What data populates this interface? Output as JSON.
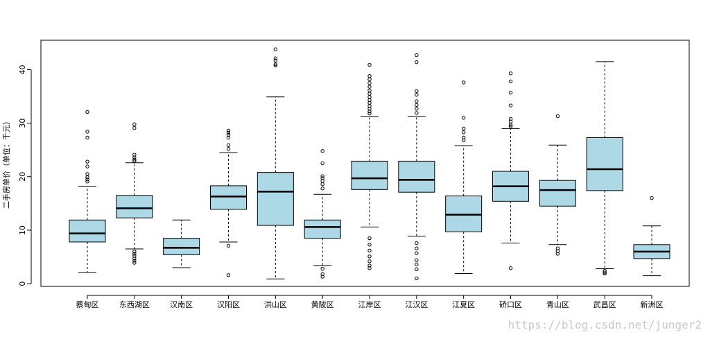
{
  "chart_data": {
    "type": "box",
    "ylabel": "二手房单价（单位：千元）",
    "ylim": [
      -0.5,
      45.5
    ],
    "yticks": [
      0,
      10,
      20,
      30,
      40
    ],
    "box_fill": "#add8e6",
    "categories": [
      "蔡甸区",
      "东西湖区",
      "汉南区",
      "汉阳区",
      "洪山区",
      "黄陂区",
      "江岸区",
      "江汉区",
      "江夏区",
      "硚口区",
      "青山区",
      "武昌区",
      "新洲区"
    ],
    "boxes": [
      {
        "whisker_low": 2.1,
        "q1": 7.8,
        "median": 9.4,
        "q3": 11.9,
        "whisker_high": 18.2,
        "outliers": [
          32.1,
          28.4,
          27.3,
          22.8,
          21.9,
          20.5,
          19.9,
          19.5,
          19.1
        ]
      },
      {
        "whisker_low": 6.5,
        "q1": 12.3,
        "median": 14.1,
        "q3": 16.5,
        "whisker_high": 22.6,
        "outliers": [
          29.8,
          29.1,
          24.1,
          23.6,
          23.2,
          22.9,
          6.0,
          5.6,
          5.2,
          4.7,
          4.3,
          3.9
        ]
      },
      {
        "whisker_low": 3.0,
        "q1": 5.4,
        "median": 6.7,
        "q3": 8.5,
        "whisker_high": 11.9,
        "outliers": []
      },
      {
        "whisker_low": 7.8,
        "q1": 13.9,
        "median": 16.3,
        "q3": 18.3,
        "whisker_high": 24.5,
        "outliers": [
          28.6,
          28.2,
          27.8,
          27.3,
          25.9,
          25.2,
          7.1,
          1.6
        ]
      },
      {
        "whisker_low": 0.9,
        "q1": 10.9,
        "median": 17.2,
        "q3": 20.8,
        "whisker_high": 34.9,
        "outliers": [
          43.8,
          42.1,
          41.7,
          41.0,
          40.8
        ]
      },
      {
        "whisker_low": 3.4,
        "q1": 8.5,
        "median": 10.6,
        "q3": 11.9,
        "whisker_high": 16.7,
        "outliers": [
          24.8,
          22.5,
          20.1,
          19.7,
          19.2,
          18.6,
          17.8,
          2.8,
          1.8,
          1.3
        ]
      },
      {
        "whisker_low": 10.6,
        "q1": 17.6,
        "median": 19.7,
        "q3": 22.9,
        "whisker_high": 31.2,
        "outliers": [
          40.9,
          38.8,
          38.2,
          37.5,
          36.8,
          36.1,
          35.5,
          34.9,
          34.3,
          33.8,
          33.2,
          32.7,
          32.2,
          31.8,
          8.5,
          7.3,
          6.2,
          5.1,
          4.2,
          3.4,
          2.9
        ]
      },
      {
        "whisker_low": 8.9,
        "q1": 17.1,
        "median": 19.4,
        "q3": 22.9,
        "whisker_high": 31.2,
        "outliers": [
          42.7,
          41.4,
          36.0,
          35.3,
          34.1,
          33.4,
          32.7,
          31.9,
          7.6,
          6.6,
          5.7,
          4.4,
          3.6,
          2.7,
          1.0
        ]
      },
      {
        "whisker_low": 1.9,
        "q1": 9.7,
        "median": 12.9,
        "q3": 16.4,
        "whisker_high": 25.8,
        "outliers": [
          37.6,
          31.0,
          29.0,
          28.3,
          27.3,
          26.8
        ]
      },
      {
        "whisker_low": 7.6,
        "q1": 15.4,
        "median": 18.2,
        "q3": 21.0,
        "whisker_high": 29.0,
        "outliers": [
          39.3,
          37.8,
          35.7,
          33.3,
          30.8,
          30.3,
          29.7,
          29.4,
          2.9
        ]
      },
      {
        "whisker_low": 7.3,
        "q1": 14.5,
        "median": 17.5,
        "q3": 19.3,
        "whisker_high": 25.9,
        "outliers": [
          31.3,
          6.6,
          6.1,
          5.6
        ]
      },
      {
        "whisker_low": 2.8,
        "q1": 17.4,
        "median": 21.4,
        "q3": 27.3,
        "whisker_high": 41.5,
        "outliers": [
          2.4,
          2.1,
          1.9
        ]
      },
      {
        "whisker_low": 1.5,
        "q1": 4.7,
        "median": 6.0,
        "q3": 7.3,
        "whisker_high": 10.8,
        "outliers": [
          16.0
        ]
      }
    ]
  },
  "watermark": "https://blog.csdn.net/junger2"
}
